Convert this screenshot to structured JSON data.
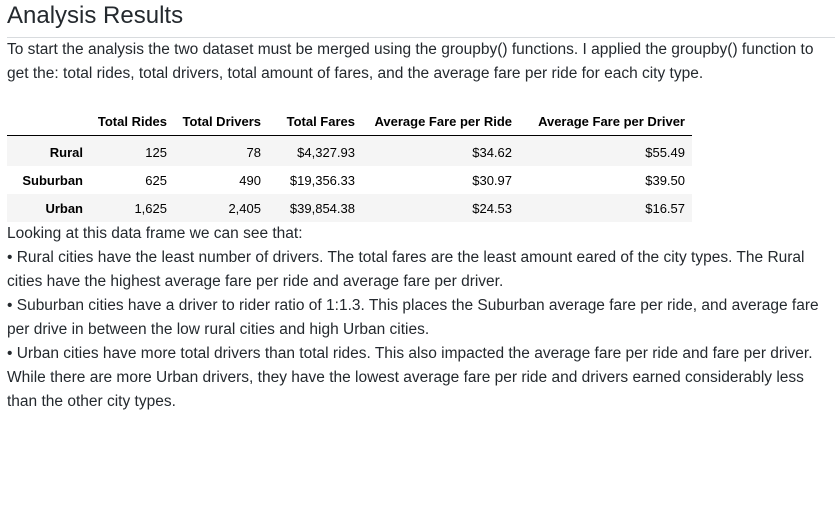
{
  "heading": "Analysis Results",
  "intro": "To start the analysis the two dataset must be merged using the groupby() functions. I applied the groupby() function to get the: total rides, total drivers, total amount of fares, and the average fare per ride for each city type.",
  "table": {
    "columns": [
      "",
      "Total Rides",
      "Total Drivers",
      "Total Fares",
      "Average Fare per Ride",
      "Average Fare per Driver"
    ],
    "rows": [
      {
        "index": "Rural",
        "total_rides": "125",
        "total_drivers": "78",
        "total_fares": "$4,327.93",
        "avg_fare_ride": "$34.62",
        "avg_fare_driver": "$55.49"
      },
      {
        "index": "Suburban",
        "total_rides": "625",
        "total_drivers": "490",
        "total_fares": "$19,356.33",
        "avg_fare_ride": "$30.97",
        "avg_fare_driver": "$39.50"
      },
      {
        "index": "Urban",
        "total_rides": "1,625",
        "total_drivers": "2,405",
        "total_fares": "$39,854.38",
        "avg_fare_ride": "$24.53",
        "avg_fare_driver": "$16.57"
      }
    ]
  },
  "observation_intro": "Looking at this data frame we can see that:",
  "bullets": [
    "• Rural cities have the least number of drivers. The total fares are the least amount eared of the city types. The Rural cities have the highest average fare per ride and average fare per driver.",
    "• Suburban cities have a driver to rider ratio of 1:1.3. This places the Suburban average fare per ride, and average fare per drive in between the low rural cities and high Urban cities.",
    "• Urban cities have more total drivers than total rides. This also impacted the average fare per ride and fare per driver. While there are more Urban drivers, they have the lowest average fare per ride and drivers earned considerably less than the other city types."
  ]
}
